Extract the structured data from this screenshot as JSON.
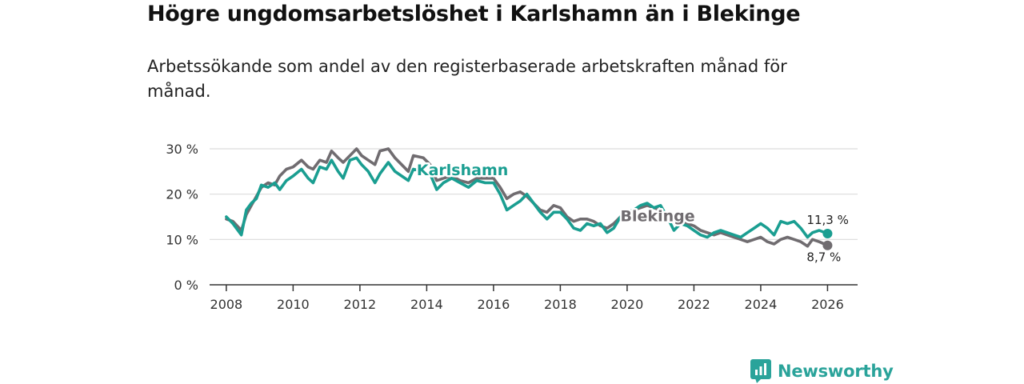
{
  "title": "Högre ungdomsarbetslöshet i Karlshamn än i Blekinge",
  "subtitle": "Arbetssökande som andel av den registerbaserade arbetskraften månad för månad.",
  "brand": {
    "name": "Newsworthy",
    "icon": "newsworthy-logo-icon",
    "color": "#2aa39a"
  },
  "chart_data": {
    "type": "line",
    "title": "Högre ungdomsarbetslöshet i Karlshamn än i Blekinge",
    "xlabel": "",
    "ylabel": "",
    "xlim": [
      2007.5,
      2026.9
    ],
    "ylim": [
      0,
      30
    ],
    "x_ticks": [
      "2008",
      "2010",
      "2012",
      "2014",
      "2016",
      "2018",
      "2020",
      "2022",
      "2024",
      "2026"
    ],
    "y_ticks": [
      "0 %",
      "10 %",
      "20 %",
      "30 %"
    ],
    "grid": true,
    "series": [
      {
        "name": "Blekinge",
        "color": "#706c70",
        "end_label": "8,7 %",
        "points": [
          [
            2008.0,
            14.5
          ],
          [
            2008.2,
            14.0
          ],
          [
            2008.45,
            12.0
          ],
          [
            2008.6,
            15.5
          ],
          [
            2008.75,
            17.5
          ],
          [
            2008.9,
            19.5
          ],
          [
            2009.05,
            21.5
          ],
          [
            2009.25,
            22.5
          ],
          [
            2009.45,
            22.0
          ],
          [
            2009.6,
            24.0
          ],
          [
            2009.8,
            25.5
          ],
          [
            2010.0,
            26.0
          ],
          [
            2010.25,
            27.5
          ],
          [
            2010.45,
            26.0
          ],
          [
            2010.6,
            25.5
          ],
          [
            2010.8,
            27.5
          ],
          [
            2011.0,
            27.0
          ],
          [
            2011.15,
            29.5
          ],
          [
            2011.35,
            28.0
          ],
          [
            2011.5,
            27.0
          ],
          [
            2011.7,
            28.5
          ],
          [
            2011.9,
            30.0
          ],
          [
            2012.05,
            28.5
          ],
          [
            2012.25,
            27.5
          ],
          [
            2012.45,
            26.5
          ],
          [
            2012.6,
            29.5
          ],
          [
            2012.85,
            30.0
          ],
          [
            2013.05,
            28.0
          ],
          [
            2013.25,
            26.5
          ],
          [
            2013.45,
            25.0
          ],
          [
            2013.6,
            28.5
          ],
          [
            2013.9,
            28.0
          ],
          [
            2014.1,
            26.5
          ],
          [
            2014.3,
            23.0
          ],
          [
            2014.5,
            23.5
          ],
          [
            2014.75,
            24.0
          ],
          [
            2015.0,
            23.0
          ],
          [
            2015.25,
            22.5
          ],
          [
            2015.5,
            23.5
          ],
          [
            2015.75,
            23.5
          ],
          [
            2016.0,
            23.5
          ],
          [
            2016.2,
            21.5
          ],
          [
            2016.4,
            19.0
          ],
          [
            2016.6,
            20.0
          ],
          [
            2016.8,
            20.5
          ],
          [
            2017.0,
            19.5
          ],
          [
            2017.2,
            18.0
          ],
          [
            2017.4,
            16.5
          ],
          [
            2017.6,
            16.0
          ],
          [
            2017.8,
            17.5
          ],
          [
            2018.0,
            17.0
          ],
          [
            2018.2,
            15.0
          ],
          [
            2018.4,
            14.0
          ],
          [
            2018.6,
            14.5
          ],
          [
            2018.8,
            14.5
          ],
          [
            2019.0,
            14.0
          ],
          [
            2019.2,
            13.0
          ],
          [
            2019.4,
            12.5
          ],
          [
            2019.6,
            13.5
          ],
          [
            2019.8,
            15.0
          ],
          [
            2020.0,
            16.0
          ],
          [
            2020.2,
            16.5
          ],
          [
            2020.4,
            17.0
          ],
          [
            2020.6,
            17.5
          ],
          [
            2020.8,
            17.0
          ],
          [
            2021.0,
            16.5
          ],
          [
            2021.2,
            15.5
          ],
          [
            2021.4,
            14.5
          ],
          [
            2021.6,
            14.0
          ],
          [
            2021.8,
            13.5
          ],
          [
            2022.0,
            13.0
          ],
          [
            2022.2,
            12.0
          ],
          [
            2022.4,
            11.5
          ],
          [
            2022.6,
            11.0
          ],
          [
            2022.8,
            11.5
          ],
          [
            2023.0,
            11.0
          ],
          [
            2023.2,
            10.5
          ],
          [
            2023.4,
            10.0
          ],
          [
            2023.6,
            9.5
          ],
          [
            2023.8,
            10.0
          ],
          [
            2024.0,
            10.5
          ],
          [
            2024.2,
            9.5
          ],
          [
            2024.4,
            9.0
          ],
          [
            2024.6,
            10.0
          ],
          [
            2024.8,
            10.5
          ],
          [
            2025.0,
            10.0
          ],
          [
            2025.2,
            9.5
          ],
          [
            2025.4,
            8.5
          ],
          [
            2025.55,
            10.0
          ],
          [
            2025.75,
            9.5
          ],
          [
            2026.0,
            8.7
          ]
        ]
      },
      {
        "name": "Karlshamn",
        "color": "#1a9e91",
        "end_label": "11,3 %",
        "points": [
          [
            2008.0,
            15.0
          ],
          [
            2008.2,
            13.5
          ],
          [
            2008.45,
            11.0
          ],
          [
            2008.6,
            16.5
          ],
          [
            2008.75,
            18.0
          ],
          [
            2008.9,
            19.0
          ],
          [
            2009.05,
            22.0
          ],
          [
            2009.25,
            21.5
          ],
          [
            2009.45,
            22.5
          ],
          [
            2009.6,
            21.0
          ],
          [
            2009.8,
            23.0
          ],
          [
            2010.0,
            24.0
          ],
          [
            2010.25,
            25.5
          ],
          [
            2010.45,
            23.5
          ],
          [
            2010.6,
            22.5
          ],
          [
            2010.8,
            26.0
          ],
          [
            2011.0,
            25.5
          ],
          [
            2011.15,
            27.5
          ],
          [
            2011.35,
            25.0
          ],
          [
            2011.5,
            23.5
          ],
          [
            2011.7,
            27.5
          ],
          [
            2011.9,
            28.0
          ],
          [
            2012.05,
            26.5
          ],
          [
            2012.25,
            25.0
          ],
          [
            2012.45,
            22.5
          ],
          [
            2012.6,
            24.5
          ],
          [
            2012.85,
            27.0
          ],
          [
            2013.05,
            25.0
          ],
          [
            2013.25,
            24.0
          ],
          [
            2013.45,
            23.0
          ],
          [
            2013.6,
            25.5
          ],
          [
            2013.9,
            25.0
          ],
          [
            2014.1,
            24.5
          ],
          [
            2014.3,
            21.0
          ],
          [
            2014.5,
            22.5
          ],
          [
            2014.75,
            23.5
          ],
          [
            2015.0,
            22.5
          ],
          [
            2015.25,
            21.5
          ],
          [
            2015.5,
            23.0
          ],
          [
            2015.75,
            22.5
          ],
          [
            2016.0,
            22.5
          ],
          [
            2016.2,
            20.0
          ],
          [
            2016.4,
            16.5
          ],
          [
            2016.6,
            17.5
          ],
          [
            2016.8,
            18.5
          ],
          [
            2017.0,
            20.0
          ],
          [
            2017.2,
            18.0
          ],
          [
            2017.4,
            16.0
          ],
          [
            2017.6,
            14.5
          ],
          [
            2017.8,
            16.0
          ],
          [
            2018.0,
            16.0
          ],
          [
            2018.2,
            14.5
          ],
          [
            2018.4,
            12.5
          ],
          [
            2018.6,
            12.0
          ],
          [
            2018.8,
            13.5
          ],
          [
            2019.0,
            13.0
          ],
          [
            2019.2,
            13.5
          ],
          [
            2019.4,
            11.5
          ],
          [
            2019.6,
            12.5
          ],
          [
            2019.8,
            15.0
          ],
          [
            2020.0,
            16.0
          ],
          [
            2020.2,
            16.5
          ],
          [
            2020.4,
            17.5
          ],
          [
            2020.6,
            18.0
          ],
          [
            2020.8,
            17.0
          ],
          [
            2021.0,
            17.5
          ],
          [
            2021.2,
            15.0
          ],
          [
            2021.4,
            12.0
          ],
          [
            2021.6,
            13.5
          ],
          [
            2021.8,
            13.0
          ],
          [
            2022.0,
            12.0
          ],
          [
            2022.2,
            11.0
          ],
          [
            2022.4,
            10.5
          ],
          [
            2022.6,
            11.5
          ],
          [
            2022.8,
            12.0
          ],
          [
            2023.0,
            11.5
          ],
          [
            2023.2,
            11.0
          ],
          [
            2023.4,
            10.5
          ],
          [
            2023.6,
            11.5
          ],
          [
            2023.8,
            12.5
          ],
          [
            2024.0,
            13.5
          ],
          [
            2024.2,
            12.5
          ],
          [
            2024.4,
            11.0
          ],
          [
            2024.6,
            14.0
          ],
          [
            2024.8,
            13.5
          ],
          [
            2025.0,
            14.0
          ],
          [
            2025.2,
            12.5
          ],
          [
            2025.4,
            10.5
          ],
          [
            2025.55,
            11.5
          ],
          [
            2025.75,
            12.0
          ],
          [
            2026.0,
            11.3
          ]
        ]
      }
    ]
  }
}
